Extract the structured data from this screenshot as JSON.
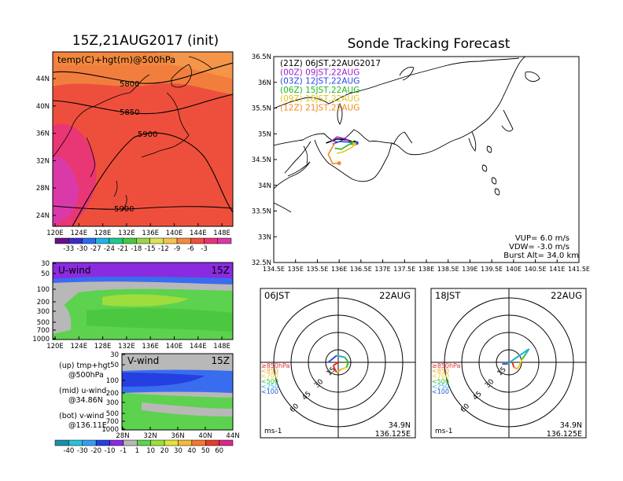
{
  "left": {
    "title": "15Z,21AUG2017 (init)",
    "map": {
      "label": "temp(C)+hgt(m)@500hPa",
      "lat_ticks": [
        "44N",
        "40N",
        "36N",
        "32N",
        "28N",
        "24N"
      ],
      "lon_ticks": [
        "120E",
        "124E",
        "128E",
        "132E",
        "136E",
        "140E",
        "144E",
        "148E"
      ],
      "contour_labels": [
        "5800",
        "5850",
        "5900",
        "5900"
      ],
      "colorbar_labels": [
        "-33",
        "-30",
        "-27",
        "-24",
        "-21",
        "-18",
        "-15",
        "-12",
        "-9",
        "-6",
        "-3"
      ],
      "colorbar_colors": [
        "#6a0f8a",
        "#3d2bc4",
        "#2a6cf0",
        "#1fb3e6",
        "#1ec98c",
        "#47c840",
        "#9bd24a",
        "#d9e35a",
        "#f5c44d",
        "#f28a3e",
        "#ee4f3c",
        "#e8337a",
        "#d93aa8"
      ]
    },
    "uwind": {
      "label": "U-wind",
      "time": "15Z",
      "p_ticks": [
        "30",
        "50",
        "100",
        "200",
        "300",
        "500",
        "700",
        "1000"
      ],
      "lon_ticks": [
        "120E",
        "124E",
        "128E",
        "132E",
        "136E",
        "140E",
        "144E",
        "148E"
      ]
    },
    "vwind": {
      "label": "V-wind",
      "time": "15Z",
      "p_ticks": [
        "30",
        "50",
        "100",
        "200",
        "300",
        "500",
        "700",
        "1000"
      ],
      "lat_ticks": [
        "28N",
        "32N",
        "36N",
        "40N",
        "44N"
      ]
    },
    "notes": [
      "(up)  tmp+hgt",
      "@500hPa",
      "(mid)  u-wind",
      "@34.86N",
      "(bot)  v-wind",
      "@136.11E"
    ],
    "wind_colorbar_labels": [
      "-40",
      "-30",
      "-20",
      "-10",
      "-1",
      "1",
      "10",
      "20",
      "30",
      "40",
      "50",
      "60"
    ],
    "wind_colorbar_colors": [
      "#1a8fa8",
      "#28c2d8",
      "#3a9cf0",
      "#2440e0",
      "#8a2be0",
      "#b8b8b8",
      "#5cd24e",
      "#9fdd3c",
      "#e0e43c",
      "#f5b93a",
      "#f27830",
      "#e83a2a",
      "#d42a8a"
    ]
  },
  "right": {
    "title": "Sonde Tracking Forecast",
    "map": {
      "lat_ticks": [
        "36.5N",
        "36N",
        "35.5N",
        "35N",
        "34.5N",
        "34N",
        "33.5N",
        "33N",
        "32.5N"
      ],
      "lon_ticks": [
        "134.5E",
        "135E",
        "135.5E",
        "136E",
        "136.5E",
        "137E",
        "137.5E",
        "138E",
        "138.5E",
        "139E",
        "139.5E",
        "140E",
        "140.5E",
        "141E",
        "141.5E"
      ],
      "legend": [
        {
          "text": "(21Z)  06JST,22AUG2017",
          "color": "#000000"
        },
        {
          "text": "(00Z)  09JST,22AUG",
          "color": "#9a1fd0"
        },
        {
          "text": "(03Z)  12JST,22AUG",
          "color": "#2a46e8"
        },
        {
          "text": "(06Z)  15JST,22AUG",
          "color": "#22b822"
        },
        {
          "text": "(09Z)  18JST,22AUG",
          "color": "#e8c21a"
        },
        {
          "text": "(12Z)  21JST,22AUG",
          "color": "#f08a22"
        }
      ],
      "params": [
        "VUP=  6.0 m/s",
        "VDW= -3.0 m/s",
        "Burst Alt=  34.0 km"
      ]
    },
    "hodo1": {
      "time": "06JST",
      "date": "22AUG",
      "rings": [
        "15",
        "30",
        "45",
        "60"
      ],
      "unit": "ms-1",
      "coord_lat": "34.9N",
      "coord_lon": "136.125E",
      "pressure_legend": [
        {
          "text": "≥850hPa",
          "color": "#e83030"
        },
        {
          "text": "<850",
          "color": "#f5a030"
        },
        {
          "text": "<700",
          "color": "#e8d020"
        },
        {
          "text": "<500",
          "color": "#30c030"
        },
        {
          "text": "<250",
          "color": "#20b0d0"
        },
        {
          "text": "<100",
          "color": "#3050e0"
        }
      ]
    },
    "hodo2": {
      "time": "18JST",
      "date": "22AUG",
      "rings": [
        "15",
        "30",
        "45",
        "60"
      ],
      "unit": "ms-1",
      "coord_lat": "34.9N",
      "coord_lon": "136.125E",
      "pressure_legend": [
        {
          "text": "≥850hPa",
          "color": "#e83030"
        },
        {
          "text": "<850",
          "color": "#f5a030"
        },
        {
          "text": "<700",
          "color": "#e8d020"
        },
        {
          "text": "<500",
          "color": "#30c030"
        },
        {
          "text": "<250",
          "color": "#20b0d0"
        },
        {
          "text": "<100",
          "color": "#3050e0"
        }
      ]
    }
  },
  "chart_data": [
    {
      "type": "heatmap",
      "title": "15Z,21AUG2017 (init)",
      "subtitle": "temp(C)+hgt(m)@500hPa",
      "xlim": [
        120,
        150
      ],
      "ylim": [
        22,
        48
      ],
      "contours": [
        5800,
        5850,
        5900
      ],
      "colorbar": [
        -33,
        -30,
        -27,
        -24,
        -21,
        -18,
        -15,
        -12,
        -9,
        -6,
        -3
      ]
    },
    {
      "type": "heatmap",
      "title": "U-wind",
      "xlim": [
        120,
        150
      ],
      "ylim": [
        1000,
        30
      ],
      "colorbar": [
        -40,
        -30,
        -20,
        -10,
        -1,
        1,
        10,
        20,
        30,
        40,
        50,
        60
      ]
    },
    {
      "type": "heatmap",
      "title": "V-wind",
      "xlim": [
        28,
        44
      ],
      "ylim": [
        1000,
        30
      ],
      "colorbar": [
        -40,
        -30,
        -20,
        -10,
        -1,
        1,
        10,
        20,
        30,
        40,
        50,
        60
      ]
    },
    {
      "type": "line",
      "title": "Sonde Tracking Forecast",
      "xlim": [
        134.5,
        141.5
      ],
      "ylim": [
        32.5,
        36.5
      ],
      "series": [
        {
          "name": "(21Z) 06JST,22AUG2017",
          "lon": [
            135.7,
            135.95,
            136.2,
            136.35
          ],
          "lat": [
            34.82,
            34.9,
            34.88,
            34.83
          ]
        },
        {
          "name": "(00Z) 09JST,22AUG",
          "lon": [
            135.8,
            135.95,
            136.15,
            136.3
          ],
          "lat": [
            34.84,
            34.94,
            34.9,
            34.82
          ]
        },
        {
          "name": "(03Z) 12JST,22AUG",
          "lon": [
            135.85,
            136.0,
            136.2,
            136.4
          ],
          "lat": [
            34.8,
            34.85,
            34.84,
            34.82
          ]
        },
        {
          "name": "(06Z) 15JST,22AUG",
          "lon": [
            135.9,
            136.05,
            136.2,
            136.3
          ],
          "lat": [
            34.72,
            34.7,
            34.78,
            34.82
          ]
        },
        {
          "name": "(09Z) 18JST,22AUG",
          "lon": [
            135.95,
            136.1,
            136.3,
            136.35
          ],
          "lat": [
            34.62,
            34.65,
            34.74,
            34.8
          ]
        },
        {
          "name": "(12Z) 21JST,22AUG",
          "lon": [
            135.9,
            135.75,
            135.85,
            136.0
          ],
          "lat": [
            34.82,
            34.6,
            34.42,
            34.43
          ]
        }
      ]
    },
    {
      "type": "scatter",
      "title": "06JST 22AUG",
      "rings": [
        15,
        30,
        45,
        60
      ],
      "series": [
        {
          "u": [
            0,
            -3,
            -1,
            2,
            5,
            6,
            4,
            -1,
            -6
          ],
          "v": [
            0,
            -2,
            -6,
            -4,
            -3,
            0,
            3,
            4,
            0
          ]
        }
      ]
    },
    {
      "type": "scatter",
      "title": "18JST 22AUG",
      "rings": [
        15,
        30,
        45,
        60
      ],
      "series": [
        {
          "u": [
            0,
            2,
            3,
            5,
            6,
            8,
            10,
            12,
            -1,
            -4
          ],
          "v": [
            0,
            0,
            -3,
            -4,
            -2,
            2,
            5,
            8,
            -1,
            -1
          ]
        }
      ]
    }
  ]
}
